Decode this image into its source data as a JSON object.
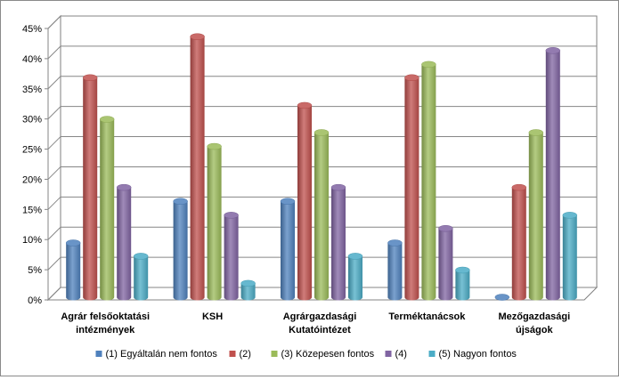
{
  "chart_data": {
    "type": "bar",
    "style": "3d-clustered-column",
    "title": "",
    "xlabel": "",
    "ylabel": "",
    "ylim": [
      0,
      45
    ],
    "y_ticks": [
      "0%",
      "5%",
      "10%",
      "15%",
      "20%",
      "25%",
      "30%",
      "35%",
      "40%",
      "45%"
    ],
    "grid": true,
    "legend_position": "bottom",
    "categories": [
      [
        "Agrár felsőoktatási",
        "intézmények"
      ],
      [
        "KSH"
      ],
      [
        "Agrárgazdasági",
        "Kutatóintézet"
      ],
      [
        "Terméktanácsok"
      ],
      [
        "Mezőgazdasági",
        "újságok"
      ]
    ],
    "series": [
      {
        "name": "(1) Egyáltalán nem fontos",
        "color": "#4f81bd",
        "values": [
          9,
          15.9,
          15.9,
          9,
          0
        ]
      },
      {
        "name": "(2)",
        "color": "#c0504d",
        "values": [
          36.4,
          43.2,
          31.8,
          36.4,
          18.2
        ]
      },
      {
        "name": "(3) Közepesen fontos",
        "color": "#9bbb59",
        "values": [
          29.5,
          25,
          27.3,
          38.6,
          27.3
        ]
      },
      {
        "name": "(4)",
        "color": "#8064a2",
        "values": [
          18.2,
          13.6,
          18.2,
          11.4,
          40.9
        ]
      },
      {
        "name": "(5) Nagyon fontos",
        "color": "#4bacc6",
        "values": [
          6.8,
          2.3,
          6.8,
          4.5,
          13.6
        ]
      }
    ]
  }
}
